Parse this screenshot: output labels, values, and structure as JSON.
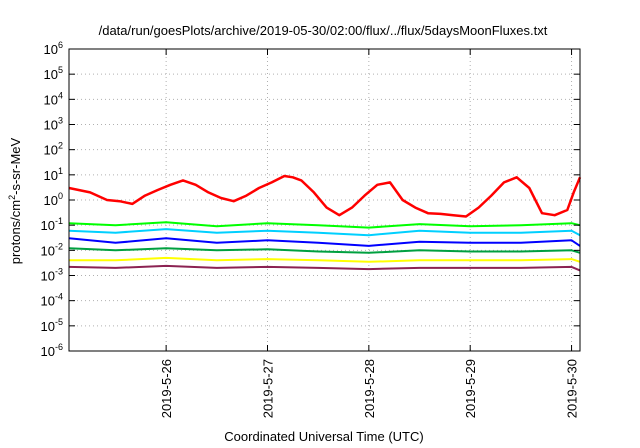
{
  "chart_data": {
    "type": "line",
    "title": "/data/run/goesPlots/archive/2019-05-30/02:00/flux/../flux/5daysMoonFluxes.txt",
    "xlabel": "Coordinated Universal Time (UTC)",
    "ylabel": "protons/cm2-s-sr-MeV",
    "ylabel_parts": {
      "base": "protons/cm",
      "sup": "2",
      "tail": "-s-sr-MeV"
    },
    "y_scale": "log",
    "ylim": [
      1e-06,
      1000000.0
    ],
    "y_ticks": [
      {
        "value": 1e-06,
        "base": "10",
        "exp": "-6"
      },
      {
        "value": 1e-05,
        "base": "10",
        "exp": "-5"
      },
      {
        "value": 0.0001,
        "base": "10",
        "exp": "-4"
      },
      {
        "value": 0.001,
        "base": "10",
        "exp": "-3"
      },
      {
        "value": 0.01,
        "base": "10",
        "exp": "-2"
      },
      {
        "value": 0.1,
        "base": "10",
        "exp": "-1"
      },
      {
        "value": 1,
        "base": "10",
        "exp": "0"
      },
      {
        "value": 10,
        "base": "10",
        "exp": "1"
      },
      {
        "value": 100,
        "base": "10",
        "exp": "2"
      },
      {
        "value": 1000,
        "base": "10",
        "exp": "3"
      },
      {
        "value": 10000,
        "base": "10",
        "exp": "4"
      },
      {
        "value": 100000,
        "base": "10",
        "exp": "5"
      },
      {
        "value": 1000000,
        "base": "10",
        "exp": "6"
      }
    ],
    "xlim": [
      "2019-05-25T01:00",
      "2019-05-30T02:00"
    ],
    "x_ticks": [
      {
        "value": "2019-05-26",
        "label": "2019-5-26"
      },
      {
        "value": "2019-05-27",
        "label": "2019-5-27"
      },
      {
        "value": "2019-05-28",
        "label": "2019-5-28"
      },
      {
        "value": "2019-05-29",
        "label": "2019-5-29"
      },
      {
        "value": "2019-05-30",
        "label": "2019-5-30"
      }
    ],
    "grid": true,
    "legend": "none",
    "series": [
      {
        "color": "#ff0000",
        "width": 2.5,
        "x": [
          "2019-05-25T01:00",
          "2019-05-25T06:00",
          "2019-05-25T10:00",
          "2019-05-25T13:00",
          "2019-05-25T16:00",
          "2019-05-25T19:00",
          "2019-05-25T22:00",
          "2019-05-26T01:00",
          "2019-05-26T04:00",
          "2019-05-26T07:00",
          "2019-05-26T10:00",
          "2019-05-26T13:00",
          "2019-05-26T16:00",
          "2019-05-26T19:00",
          "2019-05-26T22:00",
          "2019-05-27T01:00",
          "2019-05-27T04:00",
          "2019-05-27T06:00",
          "2019-05-27T08:00",
          "2019-05-27T11:00",
          "2019-05-27T14:00",
          "2019-05-27T17:00",
          "2019-05-27T20:00",
          "2019-05-27T23:00",
          "2019-05-28T02:00",
          "2019-05-28T05:00",
          "2019-05-28T08:00",
          "2019-05-28T11:00",
          "2019-05-28T14:00",
          "2019-05-28T17:00",
          "2019-05-28T20:00",
          "2019-05-28T23:00",
          "2019-05-29T02:00",
          "2019-05-29T05:00",
          "2019-05-29T08:00",
          "2019-05-29T11:00",
          "2019-05-29T14:00",
          "2019-05-29T17:00",
          "2019-05-29T20:00",
          "2019-05-29T23:00",
          "2019-05-30T00:30",
          "2019-05-30T02:00"
        ],
        "y": [
          3,
          2,
          1,
          0.9,
          0.7,
          1.5,
          2.5,
          4,
          6,
          4,
          2,
          1.2,
          0.9,
          1.5,
          3,
          5,
          9,
          8,
          6,
          2,
          0.5,
          0.25,
          0.5,
          1.5,
          4,
          5,
          1,
          0.5,
          0.3,
          0.28,
          0.25,
          0.22,
          0.5,
          1.5,
          5,
          8,
          3,
          0.3,
          0.25,
          0.4,
          2,
          8
        ]
      },
      {
        "color": "#00ff00",
        "width": 2,
        "x": [
          "2019-05-25T01:00",
          "2019-05-25T12:00",
          "2019-05-26T00:00",
          "2019-05-26T12:00",
          "2019-05-27T00:00",
          "2019-05-27T12:00",
          "2019-05-28T00:00",
          "2019-05-28T12:00",
          "2019-05-29T00:00",
          "2019-05-29T12:00",
          "2019-05-30T00:00",
          "2019-05-30T02:00"
        ],
        "y": [
          0.12,
          0.1,
          0.13,
          0.09,
          0.12,
          0.1,
          0.08,
          0.11,
          0.09,
          0.1,
          0.12,
          0.1
        ]
      },
      {
        "color": "#00d0ff",
        "width": 2,
        "x": [
          "2019-05-25T01:00",
          "2019-05-25T12:00",
          "2019-05-26T00:00",
          "2019-05-26T12:00",
          "2019-05-27T00:00",
          "2019-05-27T12:00",
          "2019-05-28T00:00",
          "2019-05-28T12:00",
          "2019-05-29T00:00",
          "2019-05-29T12:00",
          "2019-05-30T00:00",
          "2019-05-30T02:00"
        ],
        "y": [
          0.06,
          0.05,
          0.07,
          0.05,
          0.06,
          0.05,
          0.04,
          0.06,
          0.05,
          0.05,
          0.06,
          0.04
        ]
      },
      {
        "color": "#0000ff",
        "width": 2,
        "x": [
          "2019-05-25T01:00",
          "2019-05-25T12:00",
          "2019-05-26T00:00",
          "2019-05-26T12:00",
          "2019-05-27T00:00",
          "2019-05-27T12:00",
          "2019-05-28T00:00",
          "2019-05-28T12:00",
          "2019-05-29T00:00",
          "2019-05-29T12:00",
          "2019-05-30T00:00",
          "2019-05-30T02:00"
        ],
        "y": [
          0.03,
          0.02,
          0.03,
          0.02,
          0.025,
          0.02,
          0.015,
          0.022,
          0.02,
          0.02,
          0.025,
          0.015
        ]
      },
      {
        "color": "#00a040",
        "width": 2,
        "x": [
          "2019-05-25T01:00",
          "2019-05-25T12:00",
          "2019-05-26T00:00",
          "2019-05-26T12:00",
          "2019-05-27T00:00",
          "2019-05-27T12:00",
          "2019-05-28T00:00",
          "2019-05-28T12:00",
          "2019-05-29T00:00",
          "2019-05-29T12:00",
          "2019-05-30T00:00",
          "2019-05-30T02:00"
        ],
        "y": [
          0.012,
          0.01,
          0.012,
          0.01,
          0.011,
          0.009,
          0.008,
          0.01,
          0.009,
          0.009,
          0.01,
          0.008
        ]
      },
      {
        "color": "#ffff00",
        "width": 2,
        "x": [
          "2019-05-25T01:00",
          "2019-05-25T12:00",
          "2019-05-26T00:00",
          "2019-05-26T12:00",
          "2019-05-27T00:00",
          "2019-05-27T12:00",
          "2019-05-28T00:00",
          "2019-05-28T12:00",
          "2019-05-29T00:00",
          "2019-05-29T12:00",
          "2019-05-30T00:00",
          "2019-05-30T02:00"
        ],
        "y": [
          0.004,
          0.004,
          0.005,
          0.004,
          0.0045,
          0.004,
          0.0035,
          0.004,
          0.004,
          0.004,
          0.0045,
          0.0035
        ]
      },
      {
        "color": "#8b2252",
        "width": 2,
        "x": [
          "2019-05-25T01:00",
          "2019-05-25T12:00",
          "2019-05-26T00:00",
          "2019-05-26T12:00",
          "2019-05-27T00:00",
          "2019-05-27T12:00",
          "2019-05-28T00:00",
          "2019-05-28T12:00",
          "2019-05-29T00:00",
          "2019-05-29T12:00",
          "2019-05-30T00:00",
          "2019-05-30T02:00"
        ],
        "y": [
          0.0022,
          0.002,
          0.0024,
          0.002,
          0.0022,
          0.002,
          0.0018,
          0.002,
          0.002,
          0.002,
          0.0022,
          0.0016
        ]
      }
    ]
  }
}
